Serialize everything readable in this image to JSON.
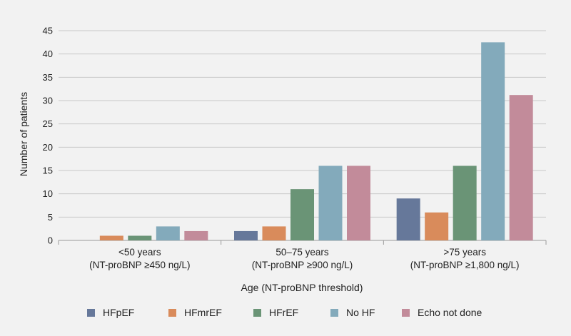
{
  "chart_data": {
    "type": "bar",
    "categories": [
      [
        "<50 years",
        "(NT-proBNP ≥450 ng/L)"
      ],
      [
        "50–75 years",
        "(NT-proBNP ≥900 ng/L)"
      ],
      [
        ">75 years",
        "(NT-proBNP ≥1,800 ng/L)"
      ]
    ],
    "series": [
      {
        "name": "HFpEF",
        "color": "#66789a",
        "values": [
          0,
          2,
          9
        ]
      },
      {
        "name": "HFmrEF",
        "color": "#d98b5b",
        "values": [
          1,
          3,
          6
        ]
      },
      {
        "name": "HFrEF",
        "color": "#6a9476",
        "values": [
          1,
          11,
          16
        ]
      },
      {
        "name": "No HF",
        "color": "#83aabb",
        "values": [
          3,
          16,
          42.5
        ]
      },
      {
        "name": "Echo not done",
        "color": "#c28b9a",
        "values": [
          2,
          16,
          31.2
        ]
      }
    ],
    "xlabel": "Age (NT-proBNP threshold)",
    "ylabel": "Number of patients",
    "ylim": [
      0,
      45
    ],
    "yticks": [
      0,
      5,
      10,
      15,
      20,
      25,
      30,
      35,
      40,
      45
    ],
    "grid": true,
    "legend_position": "bottom"
  }
}
